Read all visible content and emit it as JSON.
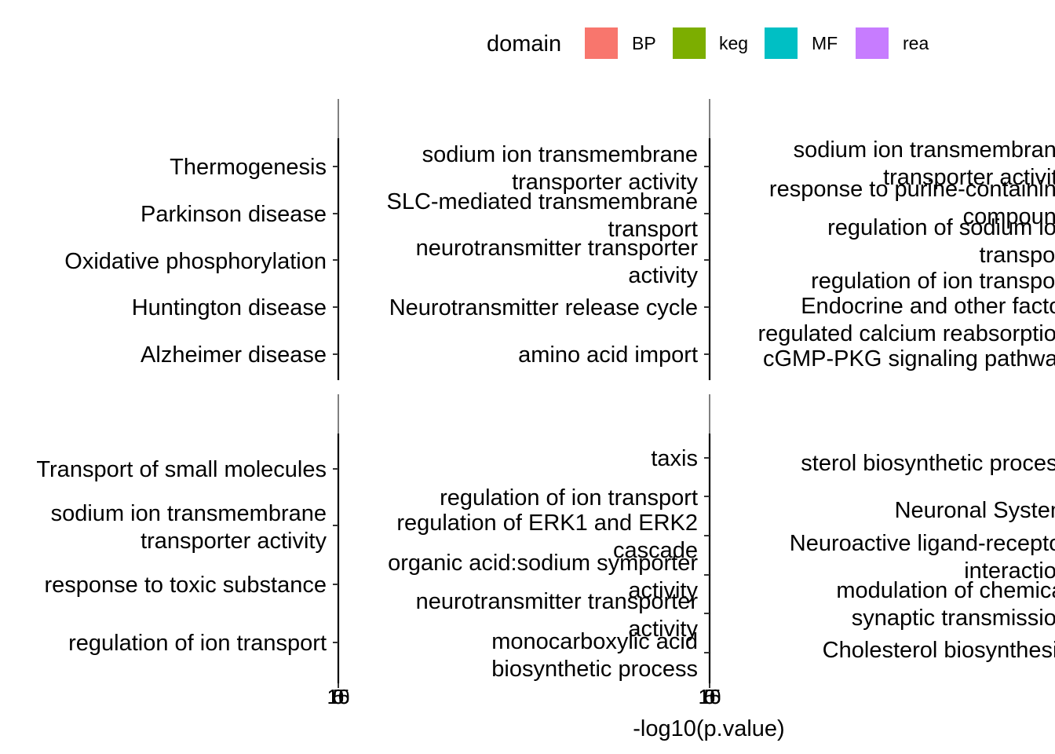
{
  "legend": {
    "title": "domain",
    "items": [
      {
        "label": "BP",
        "color": "#F8766D"
      },
      {
        "label": "keg",
        "color": "#7CAE00"
      },
      {
        "label": "MF",
        "color": "#00BFC4"
      },
      {
        "label": "rea",
        "color": "#C77CFF"
      }
    ]
  },
  "chart_data": {
    "type": "bar",
    "orientation": "horizontal",
    "xlabel": "-log10(p.value)",
    "legend_title": "domain",
    "legend_position": "top",
    "grid": false,
    "tick_labels_x": [
      "15",
      "10",
      "5",
      "0"
    ],
    "panels": [
      {
        "categories": [
          "Thermogenesis",
          "Parkinson disease",
          "Oxidative phosphorylation",
          "Huntington disease",
          "Alzheimer disease"
        ]
      },
      {
        "categories": [
          "sodium ion transmembrane\ntransporter activity",
          "SLC-mediated transmembrane\ntransport",
          "neurotransmitter transporter\nactivity",
          "Neurotransmitter release cycle",
          "amino acid import"
        ]
      },
      {
        "categories": [
          "sodium ion transmembrane\ntransporter activity",
          "response to purine-containing\ncompound",
          "regulation of sodium ion\ntransport",
          "regulation of ion transport",
          "Endocrine and other factor",
          "regulated calcium reabsorption",
          "cGMP-PKG signaling pathway"
        ]
      },
      {
        "categories": [
          "Transport of small molecules",
          "sodium ion transmembrane\ntransporter activity",
          "response to toxic substance",
          "regulation of ion transport"
        ]
      },
      {
        "categories": [
          "taxis",
          "regulation of ion transport",
          "regulation of ERK1 and ERK2\ncascade",
          "organic acid:sodium symporter\nactivity",
          "neurotransmitter transporter\nactivity",
          "monocarboxylic acid\nbiosynthetic process"
        ]
      },
      {
        "categories": [
          "sterol biosynthetic process",
          "Neuronal System",
          "Neuroactive ligand-receptor\ninteraction",
          "modulation of chemical\nsynaptic transmission",
          "Cholesterol biosynthesis"
        ]
      }
    ]
  }
}
